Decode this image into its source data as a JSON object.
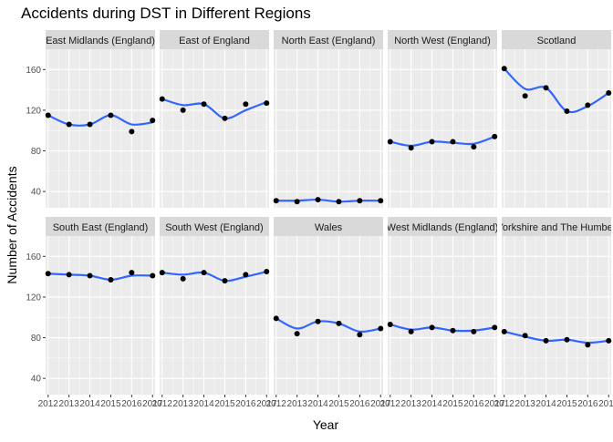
{
  "chart_data": {
    "type": "scatter",
    "title": "Accidents during DST in Different Regions",
    "xlabel": "Year",
    "ylabel": "Number of Accidents",
    "x_ticks": [
      "2012",
      "2013",
      "2014",
      "2015",
      "2016",
      "2017"
    ],
    "y_ticks": [
      40,
      80,
      120,
      160
    ],
    "xlim": [
      2011.88,
      2017.12
    ],
    "ylim": [
      24,
      180
    ],
    "panel_background": "#ebebeb",
    "strip_background": "#d9d9d9",
    "point_color": "#000000",
    "smooth_color": "#3366ff",
    "x": [
      2012,
      2013,
      2014,
      2015,
      2016,
      2017
    ],
    "facets": [
      {
        "name": "East Midlands (England)",
        "values": [
          115,
          106,
          106,
          115,
          99,
          110
        ],
        "smooth": [
          115,
          106,
          106,
          115,
          106,
          108
        ]
      },
      {
        "name": "East of England",
        "values": [
          131,
          120,
          126,
          112,
          126,
          127
        ],
        "smooth": [
          131,
          125,
          126,
          112,
          120,
          128
        ]
      },
      {
        "name": "North East (England)",
        "values": [
          31,
          30,
          32,
          30,
          31,
          31
        ],
        "smooth": [
          31,
          31,
          32,
          30,
          31,
          31
        ]
      },
      {
        "name": "North West (England)",
        "values": [
          89,
          83,
          89,
          89,
          84,
          94
        ],
        "smooth": [
          89,
          85,
          89,
          88,
          87,
          94
        ]
      },
      {
        "name": "Scotland",
        "values": [
          161,
          134,
          142,
          119,
          125,
          137
        ],
        "smooth": [
          161,
          141,
          142,
          119,
          124,
          137
        ]
      },
      {
        "name": "South East (England)",
        "values": [
          143,
          142,
          141,
          137,
          144,
          141
        ],
        "smooth": [
          143,
          142,
          141,
          137,
          141,
          141
        ]
      },
      {
        "name": "South West (England)",
        "values": [
          144,
          138,
          144,
          136,
          142,
          145
        ],
        "smooth": [
          144,
          142,
          144,
          136,
          140,
          145
        ]
      },
      {
        "name": "Wales",
        "values": [
          99,
          84,
          96,
          94,
          83,
          89
        ],
        "smooth": [
          99,
          89,
          96,
          94,
          86,
          89
        ]
      },
      {
        "name": "West Midlands (England)",
        "values": [
          93,
          86,
          90,
          87,
          86,
          90
        ],
        "smooth": [
          93,
          88,
          90,
          87,
          87,
          90
        ]
      },
      {
        "name": "Yorkshire and The Humber",
        "values": [
          86,
          82,
          77,
          78,
          73,
          77
        ],
        "smooth": [
          86,
          81,
          77,
          78,
          75,
          77
        ]
      }
    ]
  }
}
